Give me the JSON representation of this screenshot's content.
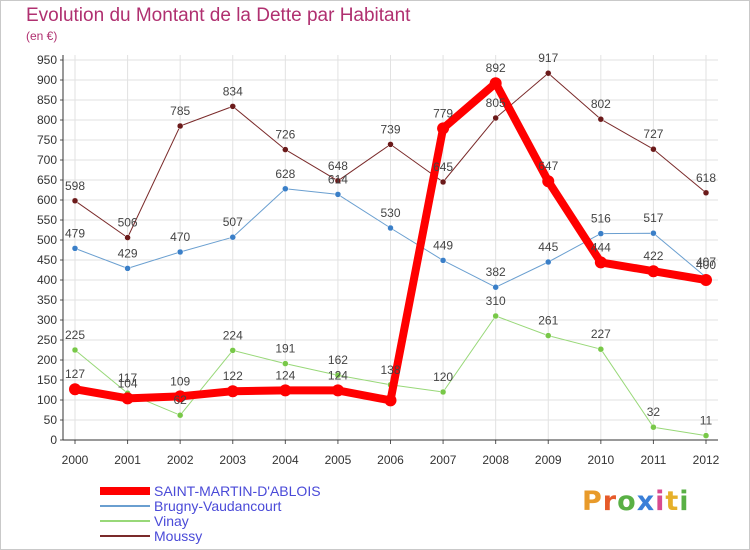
{
  "title": "Evolution du Montant de la Dette par Habitant",
  "subtitle": "(en €)",
  "logo": {
    "text": "Proxiti",
    "colors": [
      "#e89a2a",
      "#e65a2a",
      "#59b045",
      "#3a7fd8",
      "#d84a90",
      "#e6b02a",
      "#59b045"
    ]
  },
  "chart_data": {
    "type": "line",
    "x": [
      "2000",
      "2001",
      "2002",
      "2003",
      "2004",
      "2005",
      "2006",
      "2007",
      "2008",
      "2009",
      "2010",
      "2011",
      "2012"
    ],
    "ylim": [
      0,
      950
    ],
    "yticks": [
      0,
      50,
      100,
      150,
      200,
      250,
      300,
      350,
      400,
      450,
      500,
      550,
      600,
      650,
      700,
      750,
      800,
      850,
      900,
      950
    ],
    "grid": true,
    "legend": "bottom-left",
    "series": [
      {
        "name": "Moussy",
        "color": "#7a2a2a",
        "marker": "#6b1a1a",
        "width": 1,
        "values": [
          598,
          506,
          785,
          834,
          726,
          648,
          739,
          645,
          805,
          917,
          802,
          727,
          618
        ]
      },
      {
        "name": "Brugny-Vaudancourt",
        "color": "#6a9fd0",
        "marker": "#3a7fc8",
        "width": 1,
        "values": [
          479,
          429,
          470,
          507,
          628,
          614,
          530,
          449,
          382,
          445,
          516,
          517,
          407
        ]
      },
      {
        "name": "Vinay",
        "color": "#98d878",
        "marker": "#78c848",
        "width": 1,
        "values": [
          225,
          117,
          62,
          224,
          191,
          162,
          138,
          120,
          310,
          261,
          227,
          32,
          11
        ]
      },
      {
        "name": "SAINT-MARTIN-D'ABLOIS",
        "color": "#ff0000",
        "marker": "#ff0000",
        "width": 8,
        "values": [
          127,
          104,
          109,
          122,
          124,
          124,
          99,
          779,
          892,
          647,
          444,
          422,
          400
        ]
      }
    ],
    "labels": [
      {
        "series": "Moussy",
        "text": [
          "598",
          "506",
          "785",
          "834",
          "726",
          "648",
          "739",
          "645",
          "805",
          "917",
          "802",
          "727",
          "618"
        ]
      },
      {
        "series": "Brugny-Vaudancourt",
        "text": [
          "479",
          "429",
          "470",
          "507",
          "628",
          "614",
          "530",
          "449",
          "382",
          "445",
          "516",
          "517",
          "407"
        ]
      },
      {
        "series": "Vinay",
        "text": [
          "225",
          "117",
          "62",
          "224",
          "191",
          "162",
          "138",
          "120",
          "310",
          "261",
          "227",
          "32",
          "11"
        ]
      },
      {
        "series": "SAINT-MARTIN-D'ABLOIS",
        "text": [
          "127",
          "104",
          "109",
          "122",
          "124",
          "124",
          "",
          "779",
          "892",
          "647",
          "444",
          "422",
          "400"
        ]
      }
    ],
    "legend_order": [
      "SAINT-MARTIN-D'ABLOIS",
      "Brugny-Vaudancourt",
      "Vinay",
      "Moussy"
    ]
  }
}
